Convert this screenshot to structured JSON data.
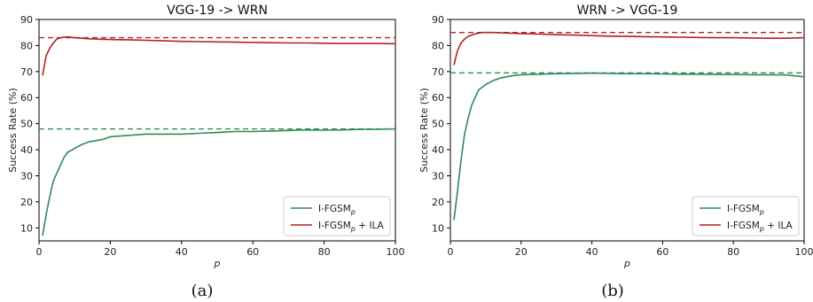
{
  "chart_data": [
    {
      "type": "line",
      "title": "VGG-19 -> WRN",
      "xlabel": "p",
      "ylabel": "Success Rate (%)",
      "xlim": [
        0,
        100
      ],
      "ylim": [
        5,
        90
      ],
      "xticks": [
        0,
        20,
        40,
        60,
        80,
        100
      ],
      "yticks": [
        10,
        20,
        30,
        40,
        50,
        60,
        70,
        80,
        90
      ],
      "subcaption": "(a)",
      "legend_position": "lower-right",
      "legend": [
        {
          "base": "I-FGSM",
          "sub": "p",
          "suffix": ""
        },
        {
          "base": "I-FGSM",
          "sub": "p",
          "suffix": " + ILA"
        }
      ],
      "reference_lines": [
        {
          "y": 83.0,
          "color": "#b22222",
          "style": "dashed"
        },
        {
          "y": 48.0,
          "color": "#2e8b57",
          "style": "dashed"
        }
      ],
      "series": [
        {
          "color": "#2e8b57",
          "x": [
            1,
            2,
            3,
            4,
            5,
            6,
            7,
            8,
            10,
            12,
            14,
            16,
            18,
            20,
            25,
            30,
            35,
            40,
            45,
            50,
            55,
            60,
            65,
            70,
            75,
            80,
            85,
            90,
            95,
            100
          ],
          "y": [
            7,
            15,
            22,
            28,
            31,
            34,
            37,
            39,
            40.5,
            42,
            43,
            43.5,
            44,
            45,
            45.5,
            46,
            46,
            46,
            46.3,
            46.6,
            47,
            47,
            47.2,
            47.4,
            47.6,
            47.5,
            47.6,
            47.8,
            47.8,
            48
          ]
        },
        {
          "color": "#b22222",
          "x": [
            1,
            2,
            3,
            4,
            5,
            6,
            7,
            8,
            10,
            12,
            14,
            16,
            18,
            20,
            25,
            30,
            35,
            40,
            45,
            50,
            55,
            60,
            65,
            70,
            75,
            80,
            85,
            90,
            95,
            100
          ],
          "y": [
            68.5,
            76,
            79,
            81,
            82.5,
            83,
            83.2,
            83.3,
            83,
            82.8,
            82.6,
            82.5,
            82.4,
            82.3,
            82.2,
            82,
            81.8,
            81.6,
            81.5,
            81.4,
            81.3,
            81.2,
            81.1,
            81,
            81,
            80.9,
            80.8,
            80.8,
            80.8,
            80.7
          ]
        }
      ]
    },
    {
      "type": "line",
      "title": "WRN -> VGG-19",
      "xlabel": "p",
      "ylabel": "Success Rate (%)",
      "xlim": [
        0,
        100
      ],
      "ylim": [
        5,
        90
      ],
      "xticks": [
        0,
        20,
        40,
        60,
        80,
        100
      ],
      "yticks": [
        10,
        20,
        30,
        40,
        50,
        60,
        70,
        80,
        90
      ],
      "subcaption": "(b)",
      "legend_position": "lower-right",
      "legend": [
        {
          "base": "I-FGSM",
          "sub": "p",
          "suffix": ""
        },
        {
          "base": "I-FGSM",
          "sub": "p",
          "suffix": " + ILA"
        }
      ],
      "reference_lines": [
        {
          "y": 85.0,
          "color": "#b22222",
          "style": "dashed"
        },
        {
          "y": 69.5,
          "color": "#2e8b57",
          "style": "dashed"
        }
      ],
      "series": [
        {
          "color": "#2e8b57",
          "x": [
            1,
            2,
            3,
            4,
            5,
            6,
            7,
            8,
            9,
            10,
            12,
            14,
            16,
            18,
            20,
            25,
            30,
            35,
            40,
            45,
            50,
            55,
            60,
            65,
            70,
            75,
            80,
            85,
            90,
            95,
            100
          ],
          "y": [
            13,
            24,
            36,
            46,
            52,
            57,
            60,
            63,
            64,
            65,
            66.5,
            67.5,
            68,
            68.5,
            68.8,
            69,
            69.2,
            69.3,
            69.4,
            69.3,
            69.2,
            69.2,
            69.1,
            69,
            69,
            68.9,
            68.9,
            68.8,
            68.8,
            68.7,
            68
          ]
        },
        {
          "color": "#b22222",
          "x": [
            1,
            2,
            3,
            4,
            5,
            6,
            7,
            8,
            9,
            10,
            12,
            14,
            16,
            18,
            20,
            25,
            30,
            35,
            40,
            45,
            50,
            55,
            60,
            65,
            70,
            75,
            80,
            85,
            90,
            95,
            100
          ],
          "y": [
            72.5,
            78,
            81,
            82.5,
            83.5,
            84,
            84.5,
            84.8,
            85,
            85,
            85,
            84.9,
            84.8,
            84.7,
            84.6,
            84.4,
            84.2,
            84,
            83.8,
            83.6,
            83.5,
            83.4,
            83.3,
            83.2,
            83.1,
            83,
            83,
            82.9,
            82.8,
            82.8,
            83
          ]
        }
      ]
    }
  ]
}
